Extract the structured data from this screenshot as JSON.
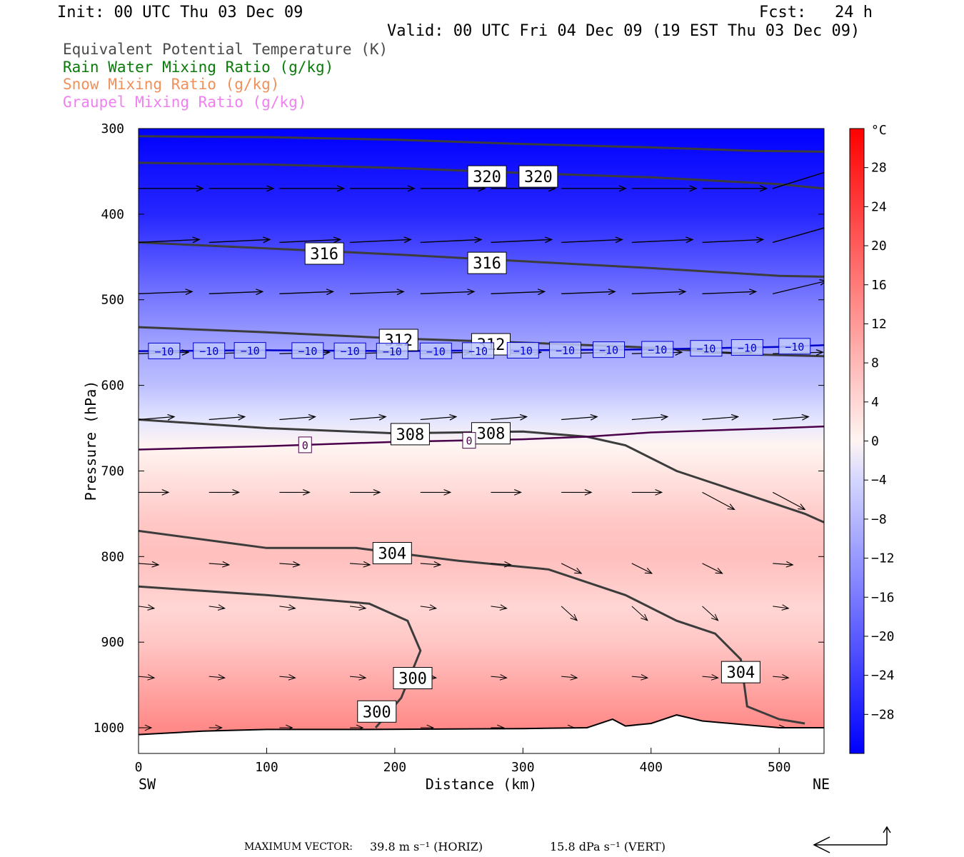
{
  "header": {
    "init": "Init: 00 UTC Thu 03 Dec 09",
    "fcst": "Fcst:   24 h",
    "valid": "Valid: 00 UTC Fri 04 Dec 09 (19 EST Thu 03 Dec 09)"
  },
  "legend": [
    {
      "label": "Equivalent Potential Temperature (K)",
      "color": "#4a4a4a"
    },
    {
      "label": "Rain Water Mixing Ratio (g/kg)",
      "color": "#0a7a0a"
    },
    {
      "label": "Snow Mixing Ratio (g/kg)",
      "color": "#f0905a"
    },
    {
      "label": "Graupel Mixing Ratio (g/kg)",
      "color": "#f080f0"
    }
  ],
  "footer": {
    "max_label": "MAXIMUM VECTOR:",
    "horiz": "39.8 m s⁻¹ (HORIZ)",
    "vert": "15.8 dPa s⁻¹ (VERT)"
  },
  "chart_data": {
    "type": "heatmap",
    "xlabel": "Distance (km)",
    "ylabel": "Pressure (hPa)",
    "x_ticks": [
      0,
      100,
      200,
      300,
      400,
      500
    ],
    "xlim": [
      0,
      535
    ],
    "y_ticks": [
      300,
      400,
      500,
      600,
      700,
      800,
      900,
      1000
    ],
    "ylim": [
      300,
      1030
    ],
    "y_scale": "inverted (pressure decreasing upward)",
    "left_end": "SW",
    "right_end": "NE",
    "colorbar": {
      "unit": "°C",
      "ticks": [
        28,
        24,
        20,
        16,
        12,
        8,
        4,
        0,
        -4,
        -8,
        -12,
        -16,
        -20,
        -24,
        -28
      ],
      "range": [
        -32,
        32
      ]
    },
    "temperature_field": [
      {
        "p": 300,
        "t": -32
      },
      {
        "p": 400,
        "t": -27
      },
      {
        "p": 500,
        "t": -16
      },
      {
        "p": 560,
        "t": -10
      },
      {
        "p": 600,
        "t": -7
      },
      {
        "p": 640,
        "t": -2
      },
      {
        "p": 670,
        "t": 0
      },
      {
        "p": 700,
        "t": 2
      },
      {
        "p": 760,
        "t": 6
      },
      {
        "p": 800,
        "t": 7
      },
      {
        "p": 860,
        "t": 4
      },
      {
        "p": 900,
        "t": 6
      },
      {
        "p": 950,
        "t": 10
      },
      {
        "p": 1000,
        "t": 14
      }
    ],
    "theta_e_contours": [
      {
        "level": 320,
        "points": [
          [
            0,
            340
          ],
          [
            100,
            342
          ],
          [
            200,
            346
          ],
          [
            300,
            352
          ],
          [
            400,
            357
          ],
          [
            500,
            365
          ],
          [
            535,
            370
          ]
        ],
        "labels": [
          {
            "x": 272,
            "p": 356,
            "text": "320"
          },
          {
            "x": 312,
            "p": 356,
            "text": "320"
          }
        ]
      },
      {
        "level": 320,
        "points": [
          [
            0,
            309
          ],
          [
            100,
            310
          ],
          [
            200,
            313
          ],
          [
            300,
            318
          ],
          [
            400,
            322
          ],
          [
            480,
            326
          ],
          [
            535,
            327
          ]
        ],
        "labels": []
      },
      {
        "level": 316,
        "points": [
          [
            0,
            433
          ],
          [
            100,
            440
          ],
          [
            200,
            447
          ],
          [
            300,
            455
          ],
          [
            400,
            463
          ],
          [
            500,
            472
          ],
          [
            535,
            473
          ]
        ],
        "labels": [
          {
            "x": 145,
            "p": 446,
            "text": "316"
          },
          {
            "x": 272,
            "p": 457,
            "text": "316"
          }
        ]
      },
      {
        "level": 312,
        "points": [
          [
            0,
            532
          ],
          [
            100,
            538
          ],
          [
            200,
            545
          ],
          [
            300,
            550
          ],
          [
            400,
            556
          ],
          [
            480,
            564
          ],
          [
            535,
            566
          ]
        ],
        "labels": [
          {
            "x": 203,
            "p": 547,
            "text": "312"
          },
          {
            "x": 275,
            "p": 552,
            "text": "312"
          }
        ]
      },
      {
        "level": 308,
        "points": [
          [
            0,
            640
          ],
          [
            100,
            650
          ],
          [
            200,
            656
          ],
          [
            300,
            654
          ],
          [
            350,
            660
          ],
          [
            380,
            670
          ],
          [
            420,
            700
          ],
          [
            460,
            720
          ],
          [
            520,
            750
          ],
          [
            535,
            760
          ]
        ],
        "labels": [
          {
            "x": 212,
            "p": 657,
            "text": "308"
          },
          {
            "x": 275,
            "p": 656,
            "text": "308"
          }
        ]
      },
      {
        "level": 304,
        "points": [
          [
            0,
            770
          ],
          [
            100,
            790
          ],
          [
            170,
            790
          ],
          [
            250,
            805
          ],
          [
            320,
            815
          ],
          [
            380,
            845
          ],
          [
            420,
            875
          ],
          [
            450,
            890
          ],
          [
            470,
            920
          ],
          [
            475,
            975
          ],
          [
            500,
            990
          ],
          [
            520,
            995
          ]
        ],
        "labels": [
          {
            "x": 198,
            "p": 796,
            "text": "304"
          },
          {
            "x": 470,
            "p": 935,
            "text": "304"
          }
        ]
      },
      {
        "level": 300,
        "points": [
          [
            0,
            835
          ],
          [
            100,
            845
          ],
          [
            180,
            855
          ],
          [
            210,
            875
          ],
          [
            220,
            910
          ],
          [
            205,
            965
          ],
          [
            185,
            1000
          ]
        ],
        "labels": [
          {
            "x": 214,
            "p": 942,
            "text": "300"
          },
          {
            "x": 186,
            "p": 981,
            "text": "300"
          }
        ]
      }
    ],
    "isotherms": [
      {
        "level": -10,
        "color": "#0000cc",
        "points": [
          [
            0,
            560
          ],
          [
            100,
            559
          ],
          [
            200,
            560
          ],
          [
            300,
            559
          ],
          [
            400,
            558
          ],
          [
            500,
            555
          ],
          [
            535,
            553
          ]
        ],
        "label_x": [
          20,
          55,
          87,
          132,
          165,
          198,
          232,
          265,
          300,
          333,
          367,
          405,
          443,
          475,
          512
        ]
      },
      {
        "level": 0,
        "color": "#4a004a",
        "points": [
          [
            0,
            675
          ],
          [
            100,
            671
          ],
          [
            200,
            666
          ],
          [
            300,
            663
          ],
          [
            350,
            660
          ],
          [
            400,
            655
          ],
          [
            500,
            650
          ],
          [
            535,
            648
          ]
        ],
        "label_x": [
          130,
          258
        ]
      }
    ],
    "wind_vectors_note": "Horizontal/vertical circulation vectors plotted along the section",
    "surface_terrain": [
      [
        0,
        1008
      ],
      [
        50,
        1004
      ],
      [
        100,
        1002
      ],
      [
        180,
        1002
      ],
      [
        300,
        1001
      ],
      [
        350,
        1000
      ],
      [
        370,
        990
      ],
      [
        380,
        998
      ],
      [
        400,
        995
      ],
      [
        420,
        985
      ],
      [
        440,
        992
      ],
      [
        500,
        1000
      ],
      [
        535,
        1000
      ]
    ]
  }
}
